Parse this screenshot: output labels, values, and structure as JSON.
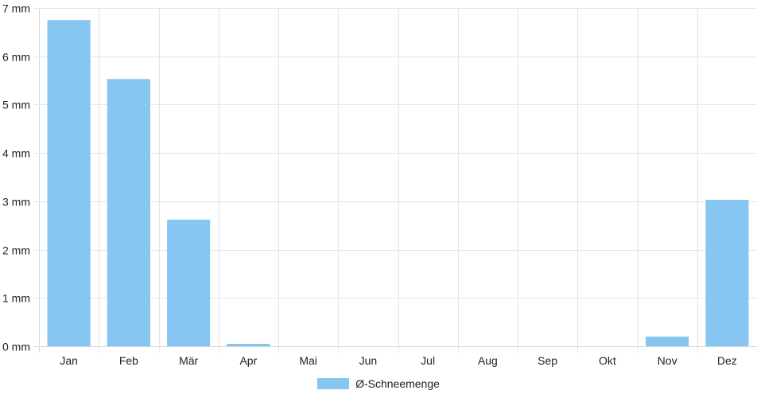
{
  "chart_data": {
    "type": "bar",
    "categories": [
      "Jan",
      "Feb",
      "Mär",
      "Apr",
      "Mai",
      "Jun",
      "Jul",
      "Aug",
      "Sep",
      "Okt",
      "Nov",
      "Dez"
    ],
    "series": [
      {
        "name": "Ø-Schneemenge",
        "values": [
          6.75,
          5.53,
          2.62,
          0.05,
          0,
          0,
          0,
          0,
          0,
          0,
          0.2,
          3.03
        ]
      }
    ],
    "ylim": [
      0,
      7
    ],
    "yticks": [
      0,
      1,
      2,
      3,
      4,
      5,
      6,
      7
    ],
    "y_unit": "mm",
    "grid": true,
    "legend_position": "bottom",
    "colors": {
      "bar": "#88c6f2",
      "grid": "#e5e5e5",
      "axis": "#d6d6d6"
    }
  },
  "legend": {
    "label": "Ø-Schneemenge"
  }
}
